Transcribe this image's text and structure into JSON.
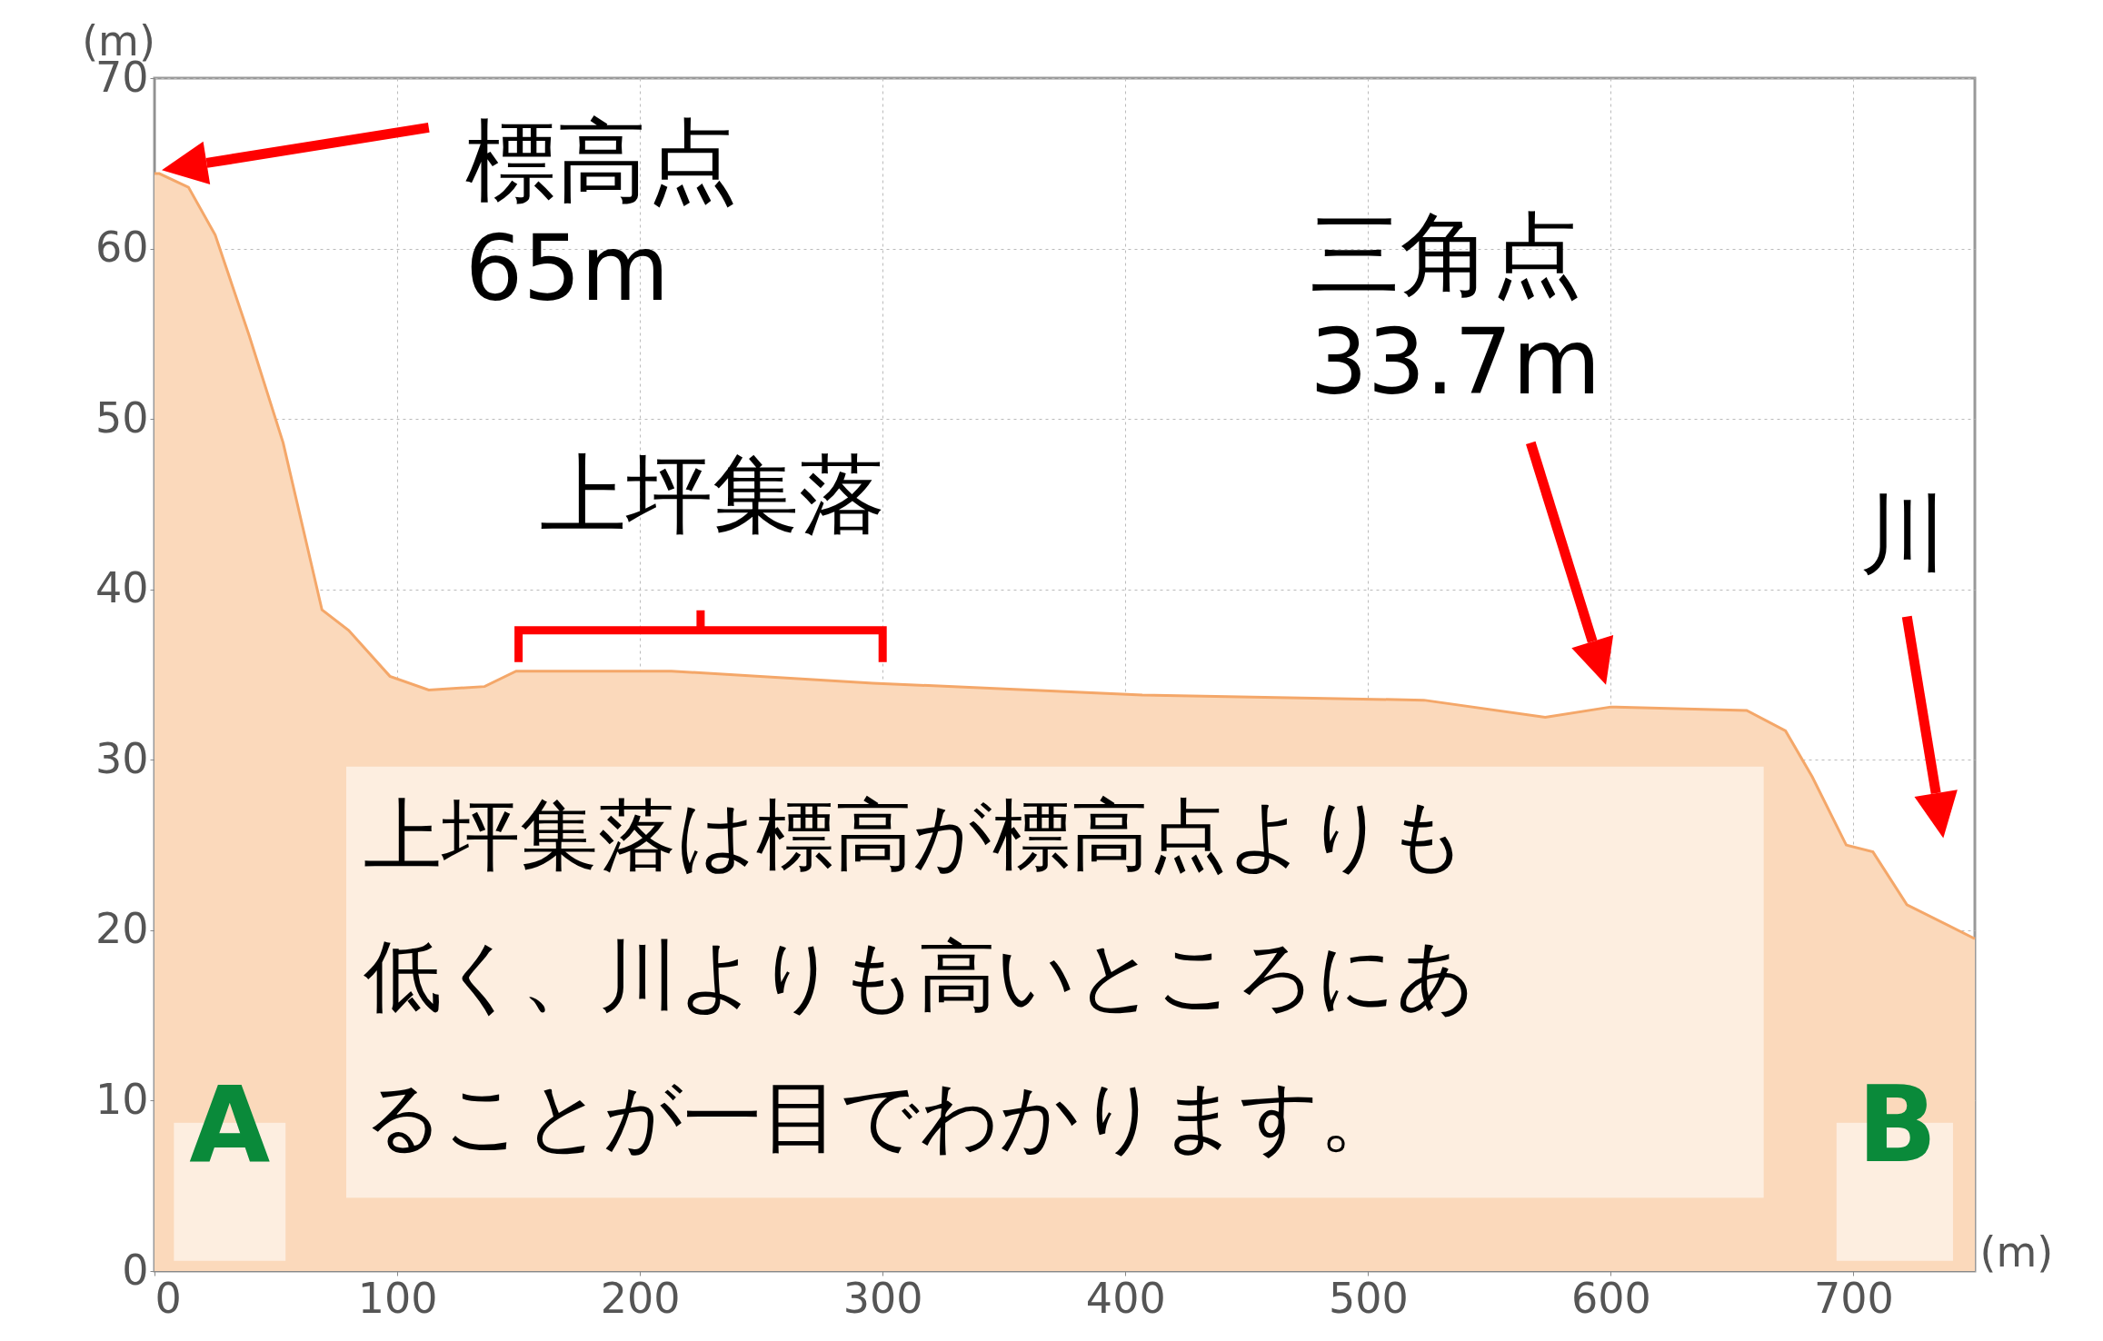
{
  "chart_data": {
    "type": "area",
    "xlabel": "(m)",
    "ylabel": "(m)",
    "x": [
      0,
      2,
      14,
      25,
      39,
      53,
      69,
      80,
      97,
      113,
      136,
      149,
      213,
      296,
      407,
      523,
      573,
      600,
      656,
      672,
      683,
      697,
      708,
      722,
      750
    ],
    "series": [
      {
        "color": "#fbd9bb",
        "values": [
          64.4,
          64.4,
          63.6,
          60.8,
          54.9,
          48.6,
          38.8,
          37.6,
          34.9,
          34.1,
          34.3,
          35.2,
          35.2,
          34.5,
          33.8,
          33.5,
          32.5,
          33.1,
          32.9,
          31.7,
          29,
          25,
          24.6,
          21.5,
          19.5
        ]
      }
    ],
    "xlim": [
      0,
      750
    ],
    "xticks": [
      0,
      100,
      200,
      300,
      400,
      500,
      600,
      700
    ],
    "ylim": [
      0,
      70
    ],
    "yticks": [
      0,
      10,
      20,
      30,
      40,
      50,
      60,
      70
    ],
    "grid": true,
    "annotations": [
      "標高点\n65m",
      "上坪集落",
      "三角点\n33.7m",
      "川",
      "A",
      "B",
      "上坪集落は標高が標高点よりも低く、川よりも高いところにあることが一目でわかります。"
    ]
  }
}
